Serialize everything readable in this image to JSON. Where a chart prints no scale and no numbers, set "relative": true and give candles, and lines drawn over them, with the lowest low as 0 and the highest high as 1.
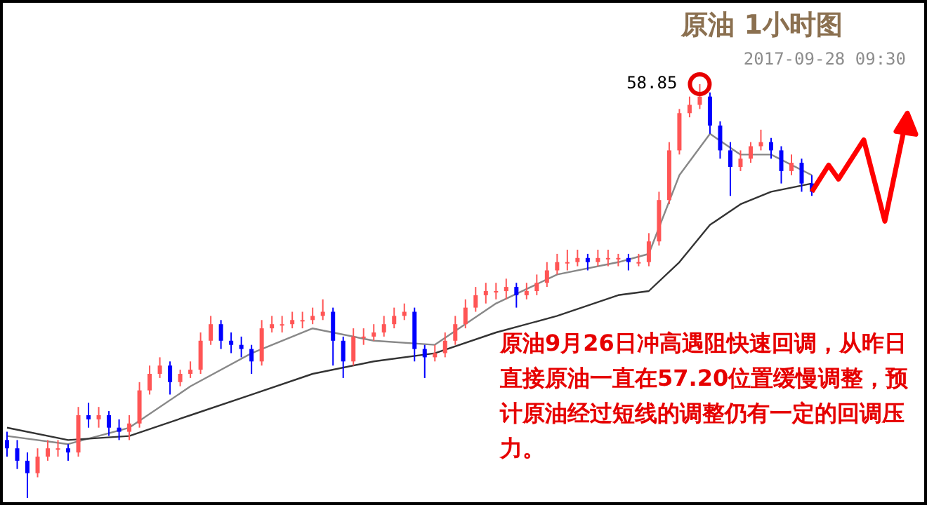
{
  "chart_data": {
    "type": "candlestick",
    "relative": true,
    "title": "原油 1小时图",
    "subtitle": "2017-09-28 09:30",
    "annotations": [
      "58.85",
      "原油9月26日冲高遇阻快速回调，从昨日直接原油一直在57.20位置缓慢调整，预计原油经过短线的调整仍有一定的回调压力。"
    ],
    "categories": [
      null,
      null,
      null,
      null,
      null,
      null,
      null,
      null,
      null,
      null,
      null,
      null,
      null,
      null,
      null,
      null,
      null,
      null,
      null,
      null,
      null,
      null,
      null,
      null,
      null,
      null,
      null,
      null,
      null,
      null,
      null,
      null,
      null,
      null,
      null,
      null,
      null,
      null,
      null,
      null,
      null,
      null,
      null,
      null,
      null,
      null,
      null,
      null,
      null,
      null,
      null,
      null,
      null,
      null,
      null,
      null,
      null,
      null,
      null,
      null,
      null,
      null,
      null,
      null,
      null,
      null,
      null,
      null,
      null,
      null,
      null,
      null,
      null,
      null,
      null,
      null,
      null,
      null,
      null,
      null
    ],
    "ohlc": [
      [
        0.14,
        0.16,
        0.1,
        0.12
      ],
      [
        0.12,
        0.14,
        0.07,
        0.09
      ],
      [
        0.09,
        0.11,
        0.0,
        0.06
      ],
      [
        0.06,
        0.12,
        0.05,
        0.1
      ],
      [
        0.1,
        0.14,
        0.09,
        0.12
      ],
      [
        0.12,
        0.14,
        0.1,
        0.12
      ],
      [
        0.12,
        0.13,
        0.09,
        0.11
      ],
      [
        0.11,
        0.22,
        0.1,
        0.2
      ],
      [
        0.2,
        0.23,
        0.17,
        0.19
      ],
      [
        0.19,
        0.22,
        0.17,
        0.2
      ],
      [
        0.2,
        0.21,
        0.15,
        0.17
      ],
      [
        0.17,
        0.19,
        0.14,
        0.16
      ],
      [
        0.16,
        0.2,
        0.14,
        0.18
      ],
      [
        0.18,
        0.28,
        0.17,
        0.26
      ],
      [
        0.26,
        0.32,
        0.25,
        0.3
      ],
      [
        0.3,
        0.34,
        0.29,
        0.32
      ],
      [
        0.32,
        0.33,
        0.25,
        0.28
      ],
      [
        0.28,
        0.31,
        0.27,
        0.3
      ],
      [
        0.3,
        0.33,
        0.29,
        0.31
      ],
      [
        0.31,
        0.4,
        0.3,
        0.38
      ],
      [
        0.38,
        0.44,
        0.37,
        0.42
      ],
      [
        0.42,
        0.43,
        0.36,
        0.38
      ],
      [
        0.38,
        0.4,
        0.35,
        0.37
      ],
      [
        0.37,
        0.39,
        0.34,
        0.36
      ],
      [
        0.36,
        0.37,
        0.3,
        0.33
      ],
      [
        0.33,
        0.43,
        0.32,
        0.41
      ],
      [
        0.41,
        0.44,
        0.4,
        0.42
      ],
      [
        0.42,
        0.44,
        0.4,
        0.42
      ],
      [
        0.42,
        0.45,
        0.41,
        0.43
      ],
      [
        0.43,
        0.45,
        0.41,
        0.43
      ],
      [
        0.43,
        0.46,
        0.42,
        0.44
      ],
      [
        0.44,
        0.48,
        0.43,
        0.45
      ],
      [
        0.45,
        0.46,
        0.32,
        0.38
      ],
      [
        0.38,
        0.39,
        0.29,
        0.33
      ],
      [
        0.33,
        0.41,
        0.32,
        0.39
      ],
      [
        0.39,
        0.41,
        0.37,
        0.39
      ],
      [
        0.39,
        0.42,
        0.38,
        0.4
      ],
      [
        0.4,
        0.44,
        0.39,
        0.42
      ],
      [
        0.42,
        0.46,
        0.41,
        0.44
      ],
      [
        0.44,
        0.47,
        0.43,
        0.45
      ],
      [
        0.45,
        0.46,
        0.33,
        0.36
      ],
      [
        0.36,
        0.37,
        0.29,
        0.34
      ],
      [
        0.34,
        0.37,
        0.33,
        0.35
      ],
      [
        0.35,
        0.4,
        0.34,
        0.38
      ],
      [
        0.38,
        0.44,
        0.37,
        0.42
      ],
      [
        0.42,
        0.48,
        0.41,
        0.46
      ],
      [
        0.46,
        0.51,
        0.45,
        0.49
      ],
      [
        0.49,
        0.52,
        0.47,
        0.5
      ],
      [
        0.5,
        0.52,
        0.48,
        0.5
      ],
      [
        0.5,
        0.53,
        0.48,
        0.51
      ],
      [
        0.51,
        0.52,
        0.46,
        0.49
      ],
      [
        0.49,
        0.52,
        0.48,
        0.5
      ],
      [
        0.5,
        0.54,
        0.49,
        0.52
      ],
      [
        0.52,
        0.57,
        0.51,
        0.55
      ],
      [
        0.55,
        0.59,
        0.54,
        0.57
      ],
      [
        0.57,
        0.6,
        0.55,
        0.57
      ],
      [
        0.57,
        0.6,
        0.56,
        0.58
      ],
      [
        0.58,
        0.59,
        0.55,
        0.57
      ],
      [
        0.57,
        0.6,
        0.56,
        0.58
      ],
      [
        0.58,
        0.6,
        0.56,
        0.58
      ],
      [
        0.58,
        0.59,
        0.56,
        0.58
      ],
      [
        0.58,
        0.59,
        0.55,
        0.57
      ],
      [
        0.57,
        0.59,
        0.56,
        0.57
      ],
      [
        0.57,
        0.64,
        0.56,
        0.62
      ],
      [
        0.62,
        0.74,
        0.61,
        0.72
      ],
      [
        0.72,
        0.86,
        0.71,
        0.84
      ],
      [
        0.84,
        0.94,
        0.83,
        0.93
      ],
      [
        0.93,
        0.97,
        0.92,
        0.95
      ],
      [
        0.95,
        1.0,
        0.94,
        0.97
      ],
      [
        0.97,
        0.98,
        0.88,
        0.9
      ],
      [
        0.9,
        0.91,
        0.82,
        0.84
      ],
      [
        0.84,
        0.86,
        0.73,
        0.8
      ],
      [
        0.8,
        0.84,
        0.79,
        0.82
      ],
      [
        0.82,
        0.86,
        0.81,
        0.85
      ],
      [
        0.85,
        0.89,
        0.84,
        0.86
      ],
      [
        0.86,
        0.87,
        0.82,
        0.84
      ],
      [
        0.84,
        0.85,
        0.76,
        0.79
      ],
      [
        0.79,
        0.83,
        0.78,
        0.81
      ],
      [
        0.81,
        0.82,
        0.74,
        0.76
      ],
      [
        0.76,
        0.78,
        0.73,
        0.74
      ]
    ],
    "series": [
      {
        "type": "line",
        "color": "#888888",
        "values": [
          0.15,
          null,
          null,
          null,
          null,
          null,
          0.13,
          null,
          null,
          null,
          null,
          null,
          0.17,
          null,
          null,
          null,
          null,
          null,
          0.27,
          null,
          null,
          null,
          null,
          null,
          0.35,
          null,
          null,
          null,
          null,
          null,
          0.41,
          null,
          null,
          null,
          null,
          null,
          0.38,
          null,
          null,
          null,
          null,
          null,
          0.37,
          null,
          null,
          null,
          null,
          null,
          0.47,
          null,
          null,
          null,
          null,
          null,
          0.54,
          null,
          null,
          null,
          null,
          null,
          0.57,
          null,
          null,
          0.59,
          null,
          null,
          0.78,
          null,
          null,
          0.88,
          null,
          null,
          0.83,
          null,
          null,
          0.83,
          null,
          null,
          null,
          0.78
        ]
      },
      {
        "type": "line",
        "color": "#333333",
        "values": [
          0.17,
          null,
          null,
          null,
          null,
          null,
          0.14,
          null,
          null,
          null,
          null,
          null,
          0.15,
          null,
          null,
          null,
          null,
          null,
          0.2,
          null,
          null,
          null,
          null,
          null,
          0.25,
          null,
          null,
          null,
          null,
          null,
          0.3,
          null,
          null,
          null,
          null,
          null,
          0.33,
          null,
          null,
          null,
          null,
          null,
          0.35,
          null,
          null,
          null,
          null,
          null,
          0.4,
          null,
          null,
          null,
          null,
          null,
          0.44,
          null,
          null,
          null,
          null,
          null,
          0.49,
          null,
          null,
          0.5,
          null,
          null,
          0.57,
          null,
          null,
          0.66,
          null,
          null,
          0.71,
          null,
          null,
          0.74,
          null,
          null,
          null,
          0.76
        ]
      }
    ]
  }
}
